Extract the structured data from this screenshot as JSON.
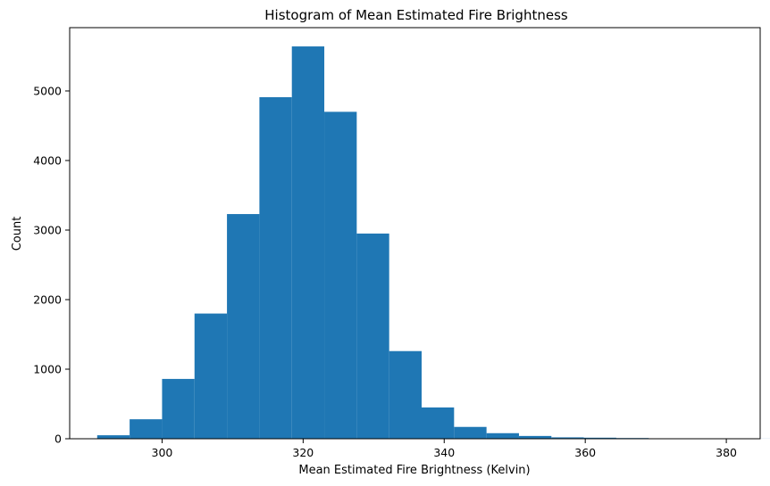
{
  "chart_data": {
    "type": "bar",
    "title": "Histogram of Mean Estimated Fire Brightness",
    "xlabel": "Mean Estimated Fire Brightness (Kelvin)",
    "ylabel": "Count",
    "xlim": [
      286.9,
      384.8
    ],
    "ylim": [
      0,
      5910
    ],
    "xticks": [
      300,
      320,
      340,
      360,
      380
    ],
    "yticks": [
      0,
      1000,
      2000,
      3000,
      4000,
      5000
    ],
    "bin_start": 290.8,
    "bin_width": 4.6,
    "values": [
      50,
      280,
      860,
      1800,
      3230,
      4910,
      5640,
      4700,
      2950,
      1260,
      450,
      170,
      80,
      40,
      20,
      15,
      10,
      5,
      3,
      2,
      1
    ],
    "bar_color": "#1f77b4",
    "grid": false
  }
}
